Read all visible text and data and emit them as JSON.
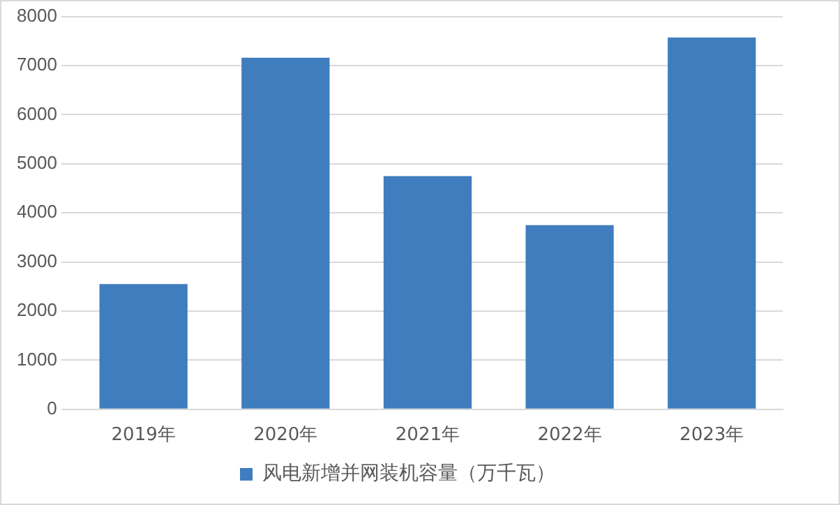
{
  "chart_data": {
    "type": "bar",
    "categories": [
      "2019年",
      "2020年",
      "2021年",
      "2022年",
      "2023年"
    ],
    "series": [
      {
        "name": "风电新增并网装机容量（万千瓦）",
        "color": "#3f7dbf",
        "values": [
          2550,
          7160,
          4750,
          3750,
          7570
        ]
      }
    ],
    "ylim": [
      0,
      8000
    ],
    "yticks": [
      0,
      1000,
      2000,
      3000,
      4000,
      5000,
      6000,
      7000,
      8000
    ],
    "grid": "y",
    "legend": "bottom"
  }
}
